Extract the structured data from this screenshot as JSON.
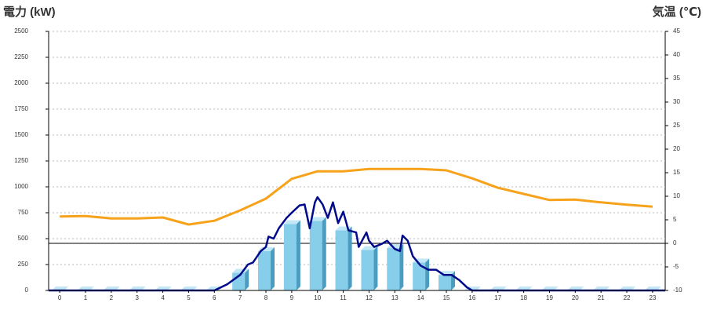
{
  "chart_data": {
    "type": "combo",
    "title_left": "電力 (kW)",
    "title_right": "気温 (℃)",
    "title_left_color": "#1a5fb4",
    "title_right_color": "#f07c1a",
    "xlim": [
      -0.43,
      23.49
    ],
    "xticks": [
      0,
      1,
      2,
      3,
      4,
      5,
      6,
      7,
      8,
      9,
      10,
      11,
      12,
      13,
      14,
      15,
      16,
      17,
      18,
      19,
      20,
      21,
      22,
      23
    ],
    "ylim": [
      0,
      2500
    ],
    "yticks": [
      0,
      250,
      500,
      750,
      1000,
      1250,
      1500,
      1750,
      2000,
      2250,
      2500
    ],
    "y2lim": [
      -10,
      45
    ],
    "y2ticks": [
      -10,
      -5,
      0,
      5,
      10,
      15,
      20,
      25,
      30,
      35,
      40,
      45
    ],
    "grid": true,
    "series": [
      {
        "type": "bar",
        "color": "#87ceeb",
        "x": [
          0,
          1,
          2,
          3,
          4,
          5,
          6,
          7,
          8,
          9,
          10,
          11,
          12,
          13,
          14,
          15,
          16,
          17,
          18,
          19,
          20,
          21,
          22,
          23
        ],
        "values": [
          0,
          0,
          0,
          0,
          0,
          0,
          0,
          170,
          380,
          640,
          670,
          580,
          390,
          410,
          270,
          150,
          0,
          0,
          0,
          0,
          0,
          0,
          0,
          0
        ]
      },
      {
        "type": "line",
        "color": "#000a8a",
        "x": [
          -0.43,
          6,
          6.5,
          7,
          7.3,
          7.5,
          7.8,
          8,
          8.1,
          8.3,
          8.5,
          8.8,
          9,
          9.3,
          9.5,
          9.7,
          9.9,
          10,
          10.2,
          10.4,
          10.6,
          10.8,
          11,
          11.2,
          11.5,
          11.6,
          11.9,
          12,
          12.2,
          12.5,
          12.7,
          13,
          13.2,
          13.3,
          13.5,
          13.7,
          14,
          14.3,
          14.6,
          14.9,
          15.2,
          15.5,
          15.8,
          16,
          23.49
        ],
        "values": [
          0,
          0,
          60,
          150,
          250,
          270,
          380,
          420,
          520,
          500,
          600,
          700,
          750,
          820,
          830,
          600,
          850,
          900,
          830,
          700,
          850,
          650,
          760,
          580,
          560,
          420,
          560,
          480,
          420,
          450,
          480,
          400,
          380,
          530,
          480,
          330,
          240,
          200,
          200,
          150,
          150,
          100,
          30,
          0,
          0
        ]
      },
      {
        "type": "line",
        "axis": "y2",
        "color": "#f7a21b",
        "x": [
          0,
          1,
          2,
          3,
          4,
          5,
          6,
          7,
          8,
          9,
          10,
          11,
          12,
          13,
          14,
          15,
          16,
          17,
          18,
          19,
          20,
          21,
          22,
          23
        ],
        "values": [
          5.7,
          5.8,
          5.3,
          5.3,
          5.5,
          4,
          4.8,
          7,
          9.5,
          13.7,
          15.3,
          15.3,
          15.8,
          15.8,
          15.8,
          15.5,
          13.8,
          11.8,
          10.5,
          9.2,
          9.3,
          8.7,
          8.2,
          7.8
        ]
      }
    ]
  }
}
